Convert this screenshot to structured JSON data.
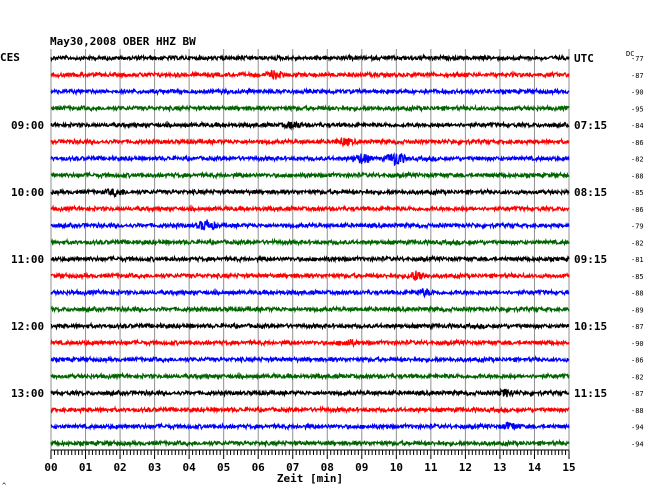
{
  "chart_data": {
    "type": "line",
    "title": "May30,2008   OBER HHZ BW",
    "left_timezone": "CES",
    "right_timezone": "UTC",
    "dc_label": "DC",
    "xlabel": "Zeit [min]",
    "xlim": [
      0,
      15
    ],
    "x_ticks": [
      "00",
      "01",
      "02",
      "03",
      "04",
      "05",
      "06",
      "07",
      "08",
      "09",
      "10",
      "11",
      "12",
      "13",
      "14",
      "15"
    ],
    "grid": true,
    "trace_colors": [
      "#000000",
      "#ff0000",
      "#0000ff",
      "#006400"
    ],
    "left_time_labels": [
      {
        "trace_index": 4,
        "label": "09:00"
      },
      {
        "trace_index": 8,
        "label": "10:00"
      },
      {
        "trace_index": 12,
        "label": "11:00"
      },
      {
        "trace_index": 16,
        "label": "12:00"
      },
      {
        "trace_index": 20,
        "label": "13:00"
      }
    ],
    "right_time_labels": [
      {
        "trace_index": 0,
        "label": "UTC"
      },
      {
        "trace_index": 4,
        "label": "07:15"
      },
      {
        "trace_index": 8,
        "label": "08:15"
      },
      {
        "trace_index": 12,
        "label": "09:15"
      },
      {
        "trace_index": 16,
        "label": "10:15"
      },
      {
        "trace_index": 20,
        "label": "11:15"
      }
    ],
    "dc_offsets": [
      -77,
      -87,
      -90,
      -95,
      -84,
      -86,
      -82,
      -88,
      -85,
      -86,
      -79,
      -82,
      -81,
      -85,
      -88,
      -89,
      -87,
      -90,
      -86,
      -82,
      -87,
      -88,
      -94,
      -94
    ],
    "events": [
      {
        "trace_index": 1,
        "minute": 6.5,
        "amplitude": 1.6
      },
      {
        "trace_index": 4,
        "minute": 7.0,
        "amplitude": 1.5
      },
      {
        "trace_index": 5,
        "minute": 8.5,
        "amplitude": 1.5
      },
      {
        "trace_index": 6,
        "minute": 9.0,
        "amplitude": 2.2
      },
      {
        "trace_index": 6,
        "minute": 10.0,
        "amplitude": 3.2
      },
      {
        "trace_index": 8,
        "minute": 1.9,
        "amplitude": 1.5
      },
      {
        "trace_index": 10,
        "minute": 4.5,
        "amplitude": 2.4
      },
      {
        "trace_index": 13,
        "minute": 10.6,
        "amplitude": 2.2
      },
      {
        "trace_index": 14,
        "minute": 10.8,
        "amplitude": 1.4
      },
      {
        "trace_index": 17,
        "minute": 8.6,
        "amplitude": 1.3
      },
      {
        "trace_index": 20,
        "minute": 13.2,
        "amplitude": 1.4
      },
      {
        "trace_index": 22,
        "minute": 13.3,
        "amplitude": 1.6
      }
    ],
    "corner_mark": "^"
  }
}
